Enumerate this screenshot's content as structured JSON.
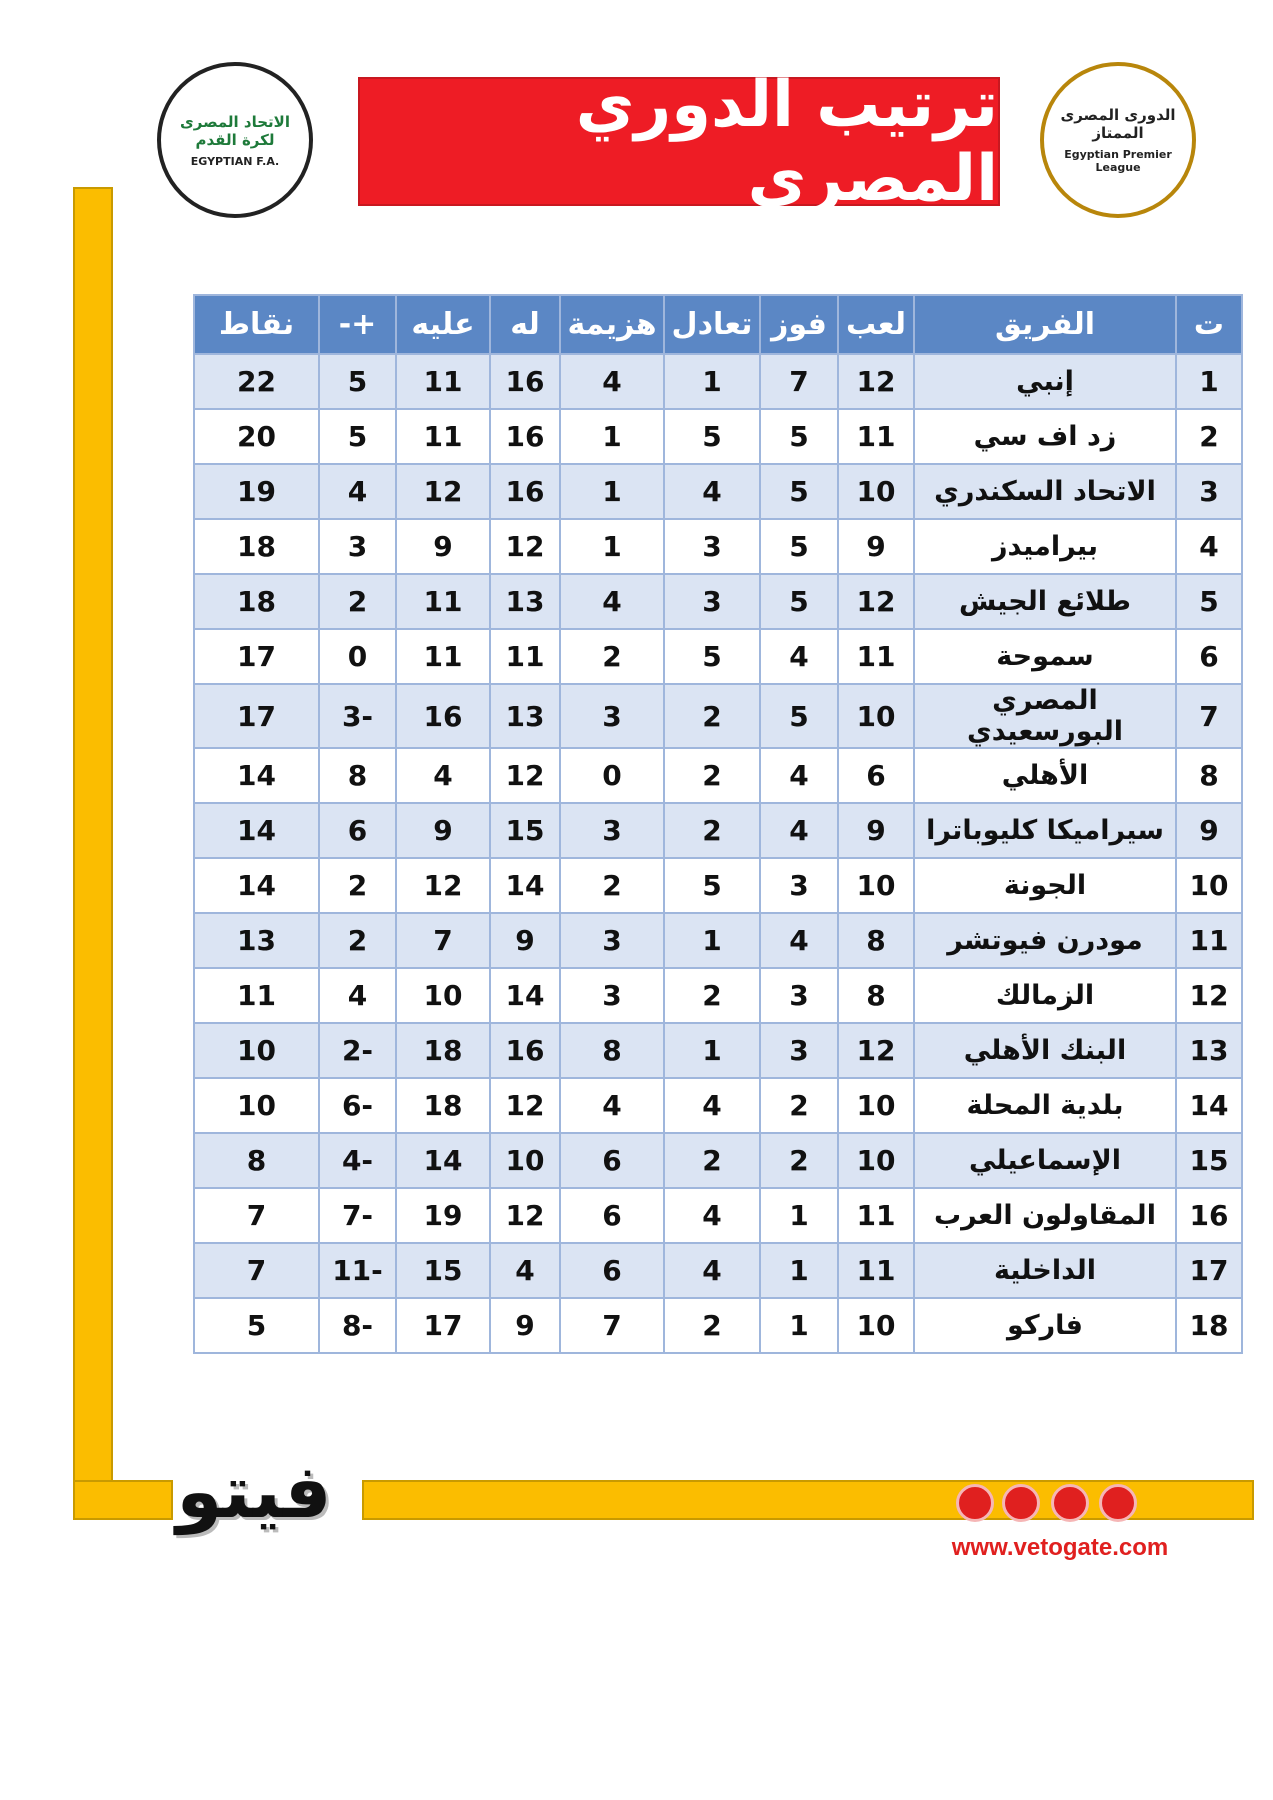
{
  "header": {
    "title": "ترتيب الدوري المصري",
    "left_logo": {
      "arabic": "الاتحاد المصرى لكرة القدم",
      "english": "EGYPTIAN F.A."
    },
    "right_logo": {
      "arabic": "الدورى المصرى الممتاز",
      "english": "Egyptian Premier League"
    }
  },
  "table": {
    "columns": [
      "ت",
      "الفريق",
      "لعب",
      "فوز",
      "تعادل",
      "هزيمة",
      "له",
      "عليه",
      "+-",
      "نقاط"
    ],
    "rows": [
      [
        1,
        "إنبي",
        12,
        7,
        1,
        4,
        16,
        11,
        5,
        22
      ],
      [
        2,
        "زد اف سي",
        11,
        5,
        5,
        1,
        16,
        11,
        5,
        20
      ],
      [
        3,
        "الاتحاد السكندري",
        10,
        5,
        4,
        1,
        16,
        12,
        4,
        19
      ],
      [
        4,
        "بيراميدز",
        9,
        5,
        3,
        1,
        12,
        9,
        3,
        18
      ],
      [
        5,
        "طلائع الجيش",
        12,
        5,
        3,
        4,
        13,
        11,
        2,
        18
      ],
      [
        6,
        "سموحة",
        11,
        4,
        5,
        2,
        11,
        11,
        0,
        17
      ],
      [
        7,
        "المصري البورسعيدي",
        10,
        5,
        2,
        3,
        13,
        16,
        -3,
        17
      ],
      [
        8,
        "الأهلي",
        6,
        4,
        2,
        0,
        12,
        4,
        8,
        14
      ],
      [
        9,
        "سيراميكا كليوباترا",
        9,
        4,
        2,
        3,
        15,
        9,
        6,
        14
      ],
      [
        10,
        "الجونة",
        10,
        3,
        5,
        2,
        14,
        12,
        2,
        14
      ],
      [
        11,
        "مودرن فيوتشر",
        8,
        4,
        1,
        3,
        9,
        7,
        2,
        13
      ],
      [
        12,
        "الزمالك",
        8,
        3,
        2,
        3,
        14,
        10,
        4,
        11
      ],
      [
        13,
        "البنك الأهلي",
        12,
        3,
        1,
        8,
        16,
        18,
        -2,
        10
      ],
      [
        14,
        "بلدية المحلة",
        10,
        2,
        4,
        4,
        12,
        18,
        -6,
        10
      ],
      [
        15,
        "الإسماعيلي",
        10,
        2,
        2,
        6,
        10,
        14,
        -4,
        8
      ],
      [
        16,
        "المقاولون العرب",
        11,
        1,
        4,
        6,
        12,
        19,
        -7,
        7
      ],
      [
        17,
        "الداخلية",
        11,
        1,
        4,
        6,
        4,
        15,
        -11,
        7
      ],
      [
        18,
        "فاركو",
        10,
        1,
        2,
        7,
        9,
        17,
        -8,
        5
      ]
    ]
  },
  "footer": {
    "brand": "فيتو",
    "website": "www.vetogate.com"
  }
}
